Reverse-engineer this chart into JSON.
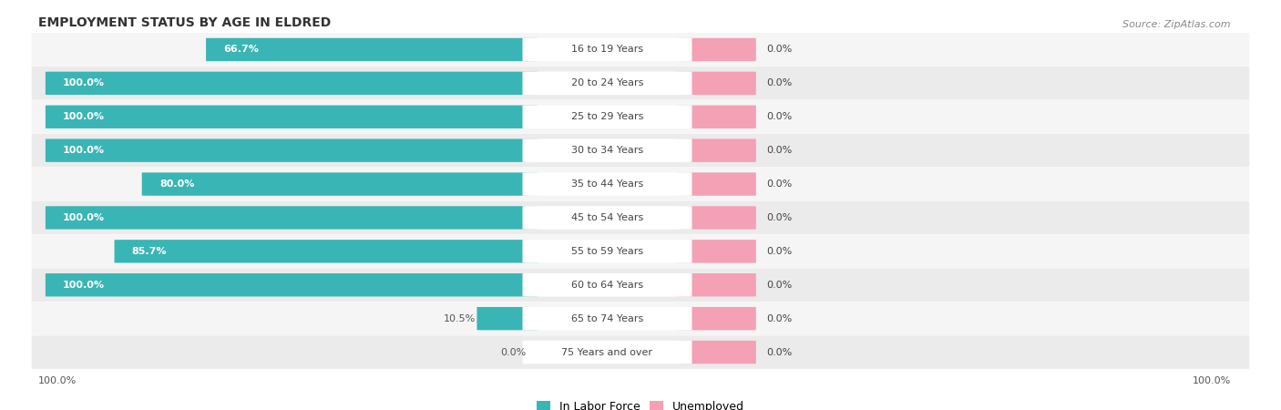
{
  "title": "EMPLOYMENT STATUS BY AGE IN ELDRED",
  "source": "Source: ZipAtlas.com",
  "categories": [
    "16 to 19 Years",
    "20 to 24 Years",
    "25 to 29 Years",
    "30 to 34 Years",
    "35 to 44 Years",
    "45 to 54 Years",
    "55 to 59 Years",
    "60 to 64 Years",
    "65 to 74 Years",
    "75 Years and over"
  ],
  "labor_force": [
    66.7,
    100.0,
    100.0,
    100.0,
    80.0,
    100.0,
    85.7,
    100.0,
    10.5,
    0.0
  ],
  "unemployed": [
    0.0,
    0.0,
    0.0,
    0.0,
    0.0,
    0.0,
    0.0,
    0.0,
    0.0,
    0.0
  ],
  "labor_force_color": "#3ab5b5",
  "unemployed_color": "#f4a0b5",
  "row_bg_light": "#f5f5f5",
  "row_bg_dark": "#ebebeb",
  "title_fontsize": 10,
  "source_fontsize": 8,
  "bar_label_fontsize": 8,
  "category_fontsize": 8,
  "legend_fontsize": 9,
  "lf_label_color_white": "white",
  "lf_label_color_dark": "#555555",
  "cat_label_color": "#444444",
  "val_label_color": "#444444"
}
